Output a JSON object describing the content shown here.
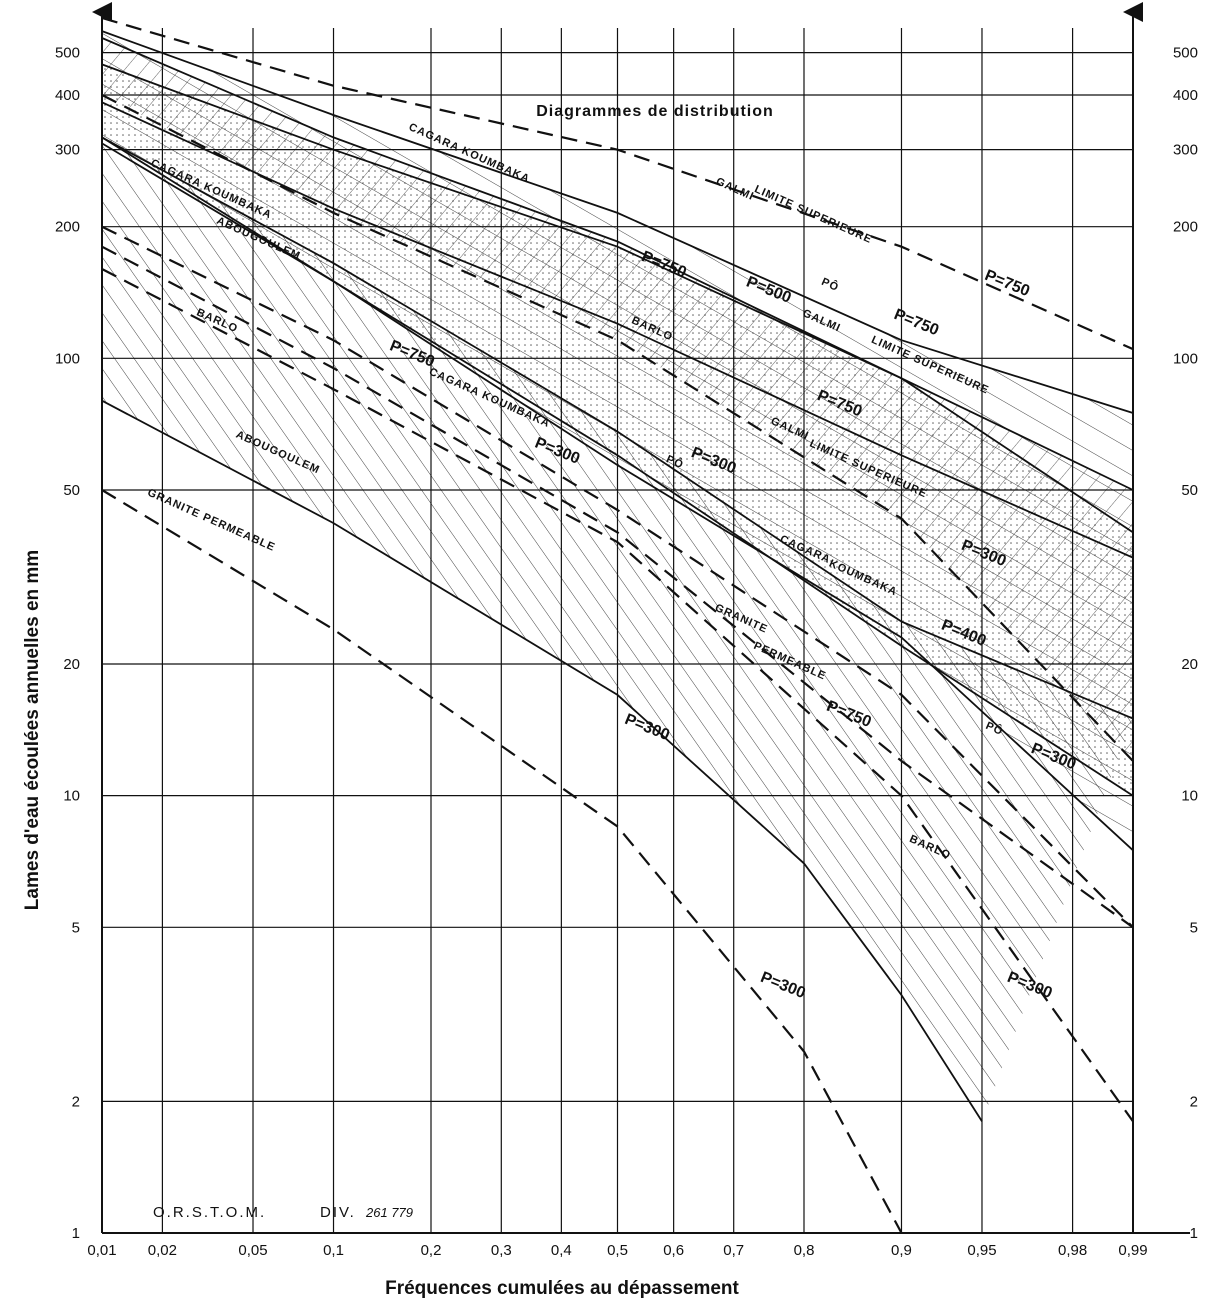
{
  "chart_data": {
    "type": "line",
    "title": "Diagrammes de distribution",
    "xlabel": "Fréquences cumulées au dépassement",
    "ylabel": "Lames d'eau écoulées annuelles en mm",
    "x_scale": "normal-probability",
    "y_scale": "log",
    "xlim": [
      0.01,
      0.99
    ],
    "ylim": [
      1,
      600
    ],
    "x_ticks": [
      0.01,
      0.02,
      0.05,
      0.1,
      0.2,
      0.3,
      0.4,
      0.5,
      0.6,
      0.7,
      0.8,
      0.9,
      0.95,
      0.98,
      0.99
    ],
    "x_tick_labels": [
      "0,01",
      "0,02",
      "0,05",
      "0,1",
      "0,2",
      "0,3",
      "0,4",
      "0,5",
      "0,6",
      "0,7",
      "0,8",
      "0,9",
      "0,95",
      "0,98",
      "0,99"
    ],
    "y_ticks": [
      1,
      2,
      5,
      10,
      20,
      50,
      100,
      200,
      300,
      400,
      500
    ],
    "y_tick_labels_left": [
      "1",
      "2",
      "5",
      "10",
      "20",
      "50",
      "100",
      "200",
      "300",
      "400",
      "500"
    ],
    "y_tick_labels_right": [
      "1",
      "2",
      "5",
      "10",
      "20",
      "50",
      "100",
      "200",
      "300",
      "400",
      "500"
    ],
    "grid": true,
    "series": [
      {
        "name": "GALMI LIMITE SUPERIEURE P=750",
        "style": "dashed",
        "x": [
          0.01,
          0.1,
          0.5,
          0.9,
          0.99
        ],
        "y": [
          600,
          420,
          300,
          180,
          105
        ]
      },
      {
        "name": "GALMI LIMITE SUPERIEURE P=500",
        "style": "solid",
        "x": [
          0.01,
          0.1,
          0.5,
          0.9,
          0.99
        ],
        "y": [
          540,
          320,
          185,
          90,
          50
        ]
      },
      {
        "name": "GALMI LIMITE SUPERIEURE P=300",
        "style": "dashed",
        "x": [
          0.01,
          0.1,
          0.5,
          0.9,
          0.99
        ],
        "y": [
          400,
          215,
          110,
          43,
          12
        ]
      },
      {
        "name": "CAGARA KOUMBAKA P=750",
        "style": "solid",
        "x": [
          0.01,
          0.1,
          0.5,
          0.9,
          0.99
        ],
        "y": [
          470,
          300,
          180,
          90,
          40
        ]
      },
      {
        "name": "CAGARA KOUMBAKA P=400",
        "style": "solid",
        "x": [
          0.01,
          0.1,
          0.5,
          0.9,
          0.99
        ],
        "y": [
          320,
          150,
          60,
          22,
          10
        ]
      },
      {
        "name": "CAGARA KOUMBAKA P=300",
        "style": "dashed",
        "x": [
          0.01,
          0.1,
          0.5,
          0.9,
          0.99
        ],
        "y": [
          200,
          110,
          45,
          17,
          5
        ]
      },
      {
        "name": "PÔ P=750",
        "style": "solid",
        "x": [
          0.01,
          0.1,
          0.5,
          0.9,
          0.99
        ],
        "y": [
          560,
          360,
          215,
          110,
          75
        ]
      },
      {
        "name": "PÔ P=300",
        "style": "solid",
        "x": [
          0.01,
          0.1,
          0.5,
          0.9,
          0.99
        ],
        "y": [
          310,
          150,
          57,
          23,
          7.5
        ]
      },
      {
        "name": "BARLO P=750",
        "style": "solid",
        "x": [
          0.01,
          0.1,
          0.5,
          0.9,
          0.99
        ],
        "y": [
          385,
          220,
          120,
          60,
          35
        ]
      },
      {
        "name": "BARLO P=300",
        "style": "dashed",
        "x": [
          0.01,
          0.1,
          0.5,
          0.9,
          0.99
        ],
        "y": [
          160,
          85,
          38,
          10,
          1.8
        ]
      },
      {
        "name": "ABOUGOULEM P=750",
        "style": "solid",
        "x": [
          0.01,
          0.1,
          0.5,
          0.9,
          0.99
        ],
        "y": [
          320,
          165,
          68,
          25,
          15
        ]
      },
      {
        "name": "ABOUGOULEM P=300",
        "style": "solid",
        "x": [
          0.01,
          0.1,
          0.5,
          0.8,
          0.9,
          0.95
        ],
        "y": [
          80,
          42,
          17,
          7,
          3.5,
          1.8
        ]
      },
      {
        "name": "GRANITE PERMEABLE P=750",
        "style": "dashed",
        "x": [
          0.01,
          0.1,
          0.5,
          0.9,
          0.99
        ],
        "y": [
          180,
          95,
          40,
          12,
          5
        ]
      },
      {
        "name": "GRANITE PERMEABLE P=300",
        "style": "dashed",
        "x": [
          0.01,
          0.1,
          0.5,
          0.8,
          0.9
        ],
        "y": [
          50,
          24,
          8.5,
          2.6,
          1
        ]
      }
    ],
    "annotations": [
      {
        "text": "GALMI",
        "x": 0.7,
        "y": 240
      },
      {
        "text": "LIMITE SUPERIEURE",
        "x": 0.81,
        "y": 210
      },
      {
        "text": "P=750",
        "x": 0.96,
        "y": 145
      },
      {
        "text": "CAGARA KOUMBAKA",
        "x": 0.25,
        "y": 290
      },
      {
        "text": "P=750",
        "x": 0.58,
        "y": 160
      },
      {
        "text": "P=500",
        "x": 0.75,
        "y": 140
      },
      {
        "text": "PÔ",
        "x": 0.83,
        "y": 145
      },
      {
        "text": "P=750",
        "x": 0.91,
        "y": 118
      },
      {
        "text": "GALMI",
        "x": 0.82,
        "y": 120
      },
      {
        "text": "LIMITE SUPERIEURE",
        "x": 0.92,
        "y": 95
      },
      {
        "text": "CAGARA KOUMBAKA",
        "x": 0.033,
        "y": 240
      },
      {
        "text": "BARLO",
        "x": 0.56,
        "y": 115
      },
      {
        "text": "P=750",
        "x": 0.84,
        "y": 77
      },
      {
        "text": "ABOUGOULEM",
        "x": 0.052,
        "y": 185
      },
      {
        "text": "BARLO",
        "x": 0.035,
        "y": 120
      },
      {
        "text": "P=750",
        "x": 0.175,
        "y": 100
      },
      {
        "text": "CAGARA KOUMBAKA",
        "x": 0.28,
        "y": 80
      },
      {
        "text": "P=300",
        "x": 0.39,
        "y": 60
      },
      {
        "text": "PÔ",
        "x": 0.6,
        "y": 57
      },
      {
        "text": "P=300",
        "x": 0.665,
        "y": 57
      },
      {
        "text": "GALMI",
        "x": 0.78,
        "y": 68
      },
      {
        "text": "LIMITE SUPERIEURE",
        "x": 0.87,
        "y": 55
      },
      {
        "text": "P=300",
        "x": 0.95,
        "y": 35
      },
      {
        "text": "CAGARA",
        "x": 0.8,
        "y": 36
      },
      {
        "text": "KOUMBAKA",
        "x": 0.865,
        "y": 31
      },
      {
        "text": "P=400",
        "x": 0.94,
        "y": 23
      },
      {
        "text": "ABOUGOULEM",
        "x": 0.062,
        "y": 60
      },
      {
        "text": "GRANITE",
        "x": 0.71,
        "y": 25
      },
      {
        "text": "PERMEABLE",
        "x": 0.78,
        "y": 20
      },
      {
        "text": "P=750",
        "x": 0.85,
        "y": 15
      },
      {
        "text": "PÔ",
        "x": 0.955,
        "y": 14
      },
      {
        "text": "P=300",
        "x": 0.975,
        "y": 12
      },
      {
        "text": "P=300",
        "x": 0.55,
        "y": 14
      },
      {
        "text": "BARLO",
        "x": 0.92,
        "y": 7.5
      },
      {
        "text": "GRANITE PERMEABLE",
        "x": 0.033,
        "y": 42
      },
      {
        "text": "P=300",
        "x": 0.77,
        "y": 3.6
      },
      {
        "text": "P=300",
        "x": 0.968,
        "y": 3.6
      }
    ]
  },
  "stamp": {
    "org": "O.R.S.T.O.M.",
    "ref": "DIV.",
    "ref_number": "261 779"
  }
}
